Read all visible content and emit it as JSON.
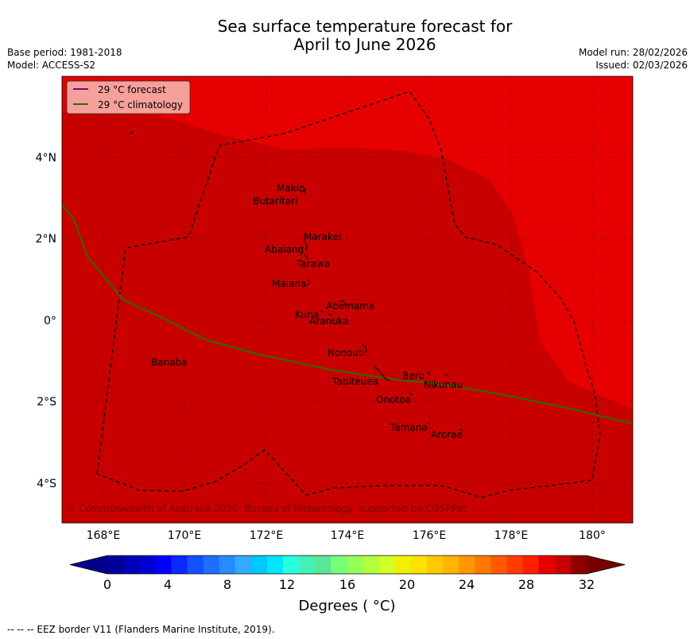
{
  "header": {
    "title_line1": "Sea surface temperature forecast for",
    "title_line2": "April to June 2026",
    "base_period": "Base period: 1981-2018",
    "model": "Model: ACCESS-S2",
    "model_run": "Model run: 28/02/2026",
    "issued": "Issued: 02/03/2026"
  },
  "legend": {
    "forecast_label": "29 °C  forecast",
    "climatology_label": "29 °C  climatology",
    "forecast_color": "#800080",
    "climatology_color": "#2e6b00"
  },
  "map": {
    "lon_ticks": [
      "168°E",
      "170°E",
      "172°E",
      "174°E",
      "176°E",
      "178°E",
      "180°"
    ],
    "lat_ticks": [
      "4°N",
      "2°N",
      "0°",
      "2°S",
      "4°S"
    ],
    "islands": [
      "Makin",
      "Butaritari",
      "Marakei",
      "Abaiang",
      "Tarawa",
      "Maiana",
      "Abemama",
      "Kuria",
      "Aranuka",
      "Nonouti",
      "Banaba",
      "Tabiteuea",
      "Beru",
      "Nikunau",
      "Onotoa",
      "Tamana",
      "Arorae"
    ],
    "copyright": "© Commonwealth of Australia 2026, Bureau of Meteorology, supported by COSPPac",
    "colors": {
      "region_29_30": "#e60000",
      "region_30_31": "#c80000"
    }
  },
  "colorbar": {
    "ticks": [
      "0",
      "4",
      "8",
      "12",
      "16",
      "20",
      "24",
      "28",
      "32"
    ],
    "colors": [
      "#000096",
      "#0000b4",
      "#0000d2",
      "#0000ff",
      "#0a28ff",
      "#1450ff",
      "#1e6eff",
      "#288cff",
      "#32aaff",
      "#00c8ff",
      "#00e6ff",
      "#28ffdc",
      "#46f0b4",
      "#5ae696",
      "#78ff78",
      "#96ff5a",
      "#b4ff3c",
      "#d2ff28",
      "#f0f000",
      "#ffe100",
      "#ffc800",
      "#ffb400",
      "#ff9600",
      "#ff7800",
      "#ff5a00",
      "#ff3c00",
      "#ff1e00",
      "#e60000",
      "#c80000",
      "#8c0000"
    ],
    "under_color": "#00008c",
    "over_color": "#780000",
    "title": "Degrees ( °C)"
  },
  "footer": {
    "eez_note": "--  --  -- EEZ border V11 (Flanders Marine Institute, 2019)."
  }
}
